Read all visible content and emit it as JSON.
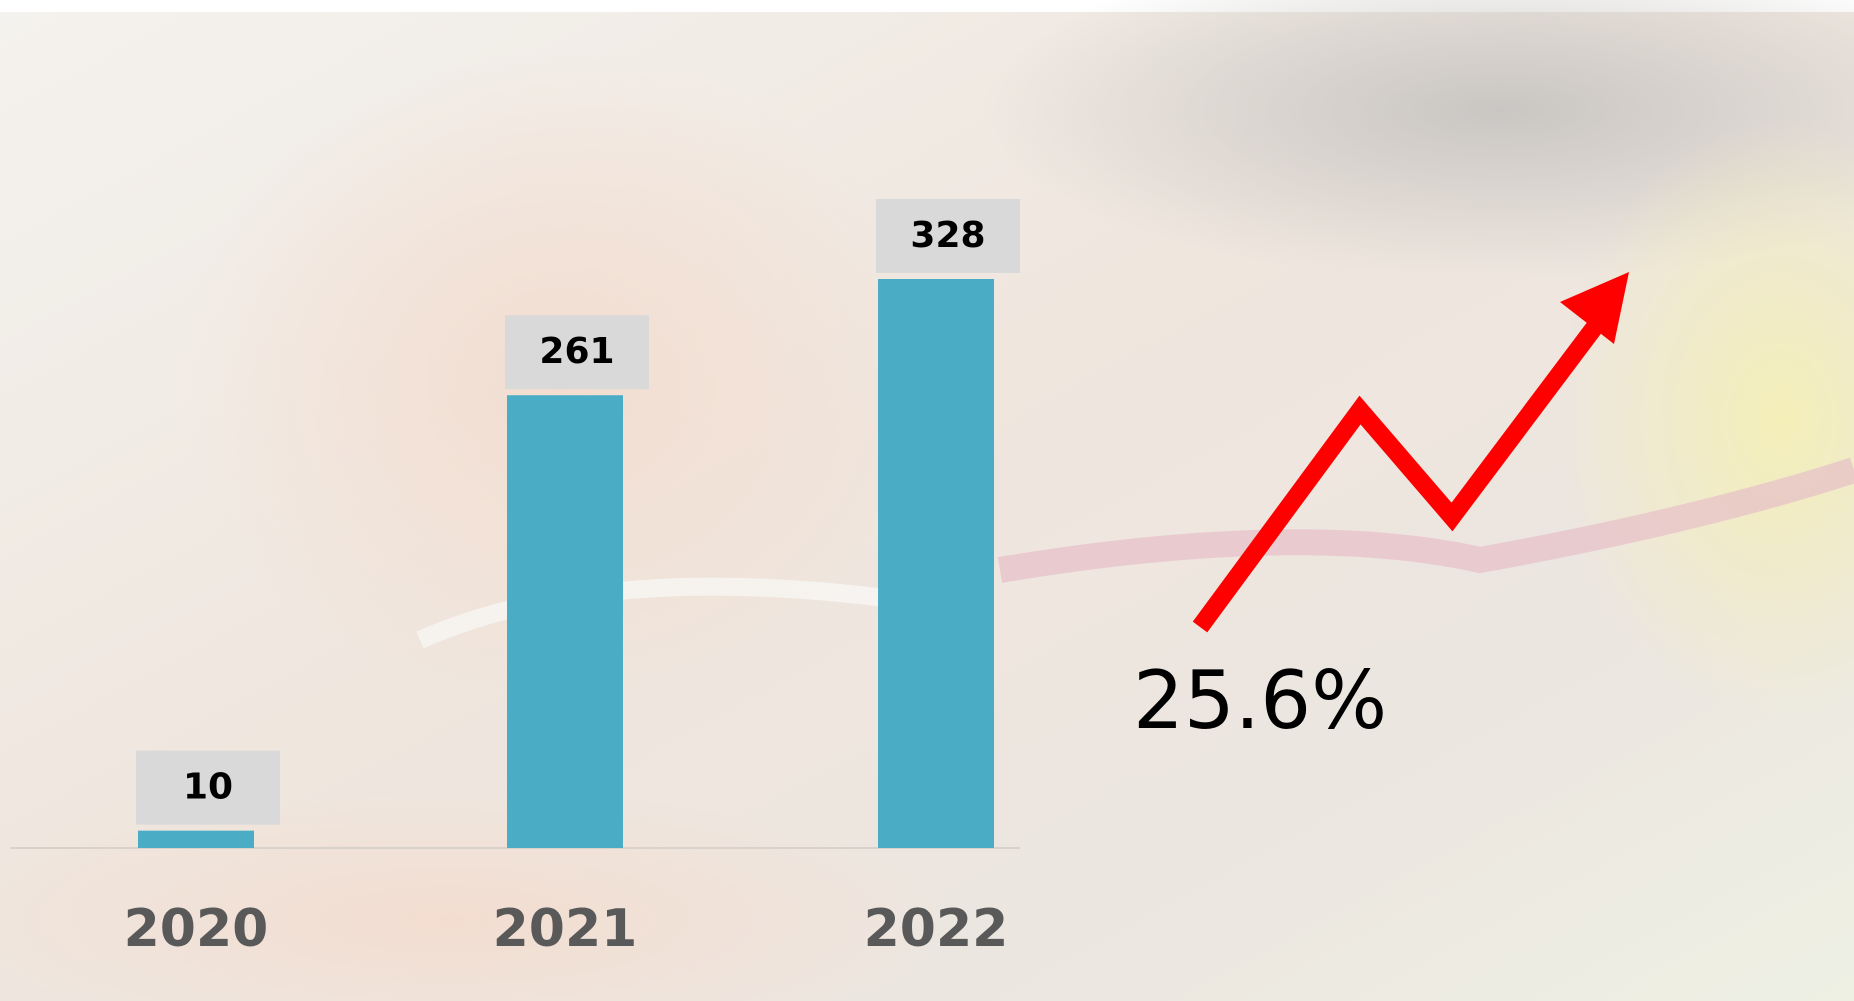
{
  "chart_data": {
    "type": "bar",
    "categories": [
      "2020",
      "2021",
      "2022"
    ],
    "values": [
      10,
      261,
      328
    ],
    "color": "#4bacc6",
    "annotation": "25.6%"
  }
}
